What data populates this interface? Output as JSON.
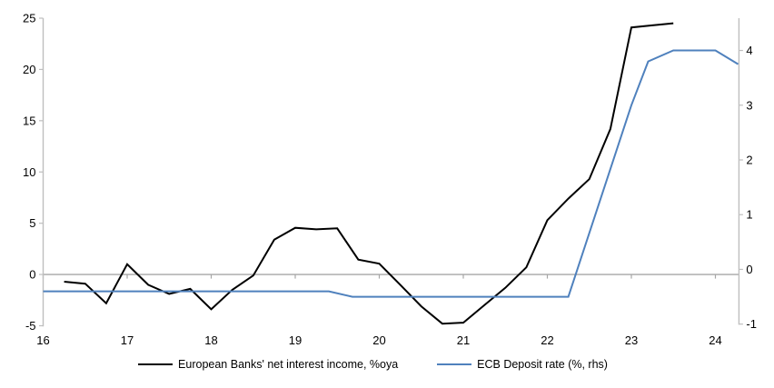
{
  "chart_data": {
    "type": "line",
    "grid": "off",
    "legend_position": "bottom",
    "x_axis": {
      "min": 16,
      "max": 24.28,
      "ticks": [
        16,
        17,
        18,
        19,
        20,
        21,
        22,
        23,
        24
      ]
    },
    "left_axis": {
      "min": -5,
      "max": 25,
      "ticks": [
        25,
        20,
        15,
        10,
        5,
        0,
        -5
      ]
    },
    "right_axis": {
      "min": -1.03,
      "max": 4.59,
      "ticks": [
        4,
        3,
        2,
        1,
        0,
        -1
      ]
    },
    "zero_line_value": 0,
    "series": [
      {
        "name": "European Banks' net interest income, %oya",
        "axis": "left",
        "color": "#000000",
        "points": [
          [
            16.25,
            -0.7
          ],
          [
            16.5,
            -0.9
          ],
          [
            16.75,
            -2.8
          ],
          [
            17.0,
            1.0
          ],
          [
            17.25,
            -1.0
          ],
          [
            17.5,
            -1.9
          ],
          [
            17.75,
            -1.4
          ],
          [
            18.0,
            -3.4
          ],
          [
            18.25,
            -1.5
          ],
          [
            18.5,
            -0.1
          ],
          [
            18.75,
            3.4
          ],
          [
            19.0,
            4.55
          ],
          [
            19.25,
            4.4
          ],
          [
            19.5,
            4.5
          ],
          [
            19.75,
            1.45
          ],
          [
            20.0,
            1.05
          ],
          [
            20.25,
            -1.0
          ],
          [
            20.5,
            -3.1
          ],
          [
            20.75,
            -4.8
          ],
          [
            21.0,
            -4.7
          ],
          [
            21.25,
            -3.0
          ],
          [
            21.5,
            -1.3
          ],
          [
            21.75,
            0.7
          ],
          [
            22.0,
            5.3
          ],
          [
            22.25,
            7.4
          ],
          [
            22.5,
            9.3
          ],
          [
            22.75,
            14.2
          ],
          [
            23.0,
            24.1
          ],
          [
            23.25,
            24.3
          ],
          [
            23.5,
            24.5
          ]
        ]
      },
      {
        "name": "ECB Deposit rate (%, rhs)",
        "axis": "right",
        "color": "#4F81BD",
        "points": [
          [
            16.0,
            -0.4
          ],
          [
            19.4,
            -0.4
          ],
          [
            19.68,
            -0.5
          ],
          [
            22.25,
            -0.5
          ],
          [
            23.0,
            3.0
          ],
          [
            23.2,
            3.8
          ],
          [
            23.5,
            4.0
          ],
          [
            24.0,
            4.0
          ],
          [
            24.27,
            3.75
          ]
        ]
      }
    ]
  },
  "colors": {
    "background": "#FFFFFF",
    "axis_line": "#BFBFBF",
    "zero_line": "#A6A6A6",
    "text": "#000000",
    "series_nii": "#000000",
    "series_ecb": "#4F81BD"
  }
}
